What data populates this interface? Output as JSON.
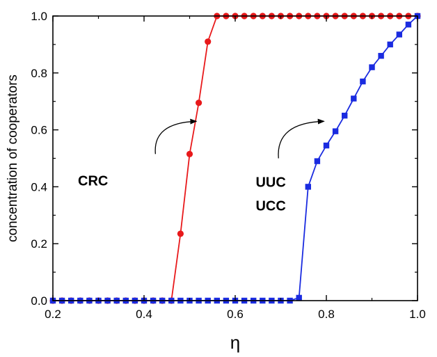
{
  "chart_data": {
    "type": "line",
    "xlabel": "η",
    "ylabel": "concentration of cooperators",
    "xlim": [
      0.2,
      1.0
    ],
    "ylim": [
      0.0,
      1.0
    ],
    "xticks": [
      "0.2",
      "0.4",
      "0.6",
      "0.8",
      "1.0"
    ],
    "yticks": [
      "0.0",
      "0.2",
      "0.4",
      "0.6",
      "0.8",
      "1.0"
    ],
    "grid": false,
    "legend": "none",
    "series": [
      {
        "color": "#e8191b",
        "marker": "circle",
        "x": [
          0.2,
          0.22,
          0.24,
          0.26,
          0.28,
          0.3,
          0.32,
          0.34,
          0.36,
          0.38,
          0.4,
          0.42,
          0.44,
          0.46,
          0.48,
          0.5,
          0.52,
          0.54,
          0.56,
          0.58,
          0.6,
          0.62,
          0.64,
          0.66,
          0.68,
          0.7,
          0.72,
          0.74,
          0.76,
          0.78,
          0.8,
          0.82,
          0.84,
          0.86,
          0.88,
          0.9,
          0.92,
          0.94,
          0.96,
          0.98,
          1.0
        ],
        "y": [
          0,
          0,
          0,
          0,
          0,
          0,
          0,
          0,
          0,
          0,
          0,
          0,
          0,
          0,
          0.235,
          0.515,
          0.695,
          0.91,
          1,
          1,
          1,
          1,
          1,
          1,
          1,
          1,
          1,
          1,
          1,
          1,
          1,
          1,
          1,
          1,
          1,
          1,
          1,
          1,
          1,
          1,
          1
        ]
      },
      {
        "color": "#1a2be0",
        "marker": "square",
        "x": [
          0.2,
          0.22,
          0.24,
          0.26,
          0.28,
          0.3,
          0.32,
          0.34,
          0.36,
          0.38,
          0.4,
          0.42,
          0.44,
          0.46,
          0.48,
          0.5,
          0.52,
          0.54,
          0.56,
          0.58,
          0.6,
          0.62,
          0.64,
          0.66,
          0.68,
          0.7,
          0.72,
          0.74,
          0.76,
          0.78,
          0.8,
          0.82,
          0.84,
          0.86,
          0.88,
          0.9,
          0.92,
          0.94,
          0.96,
          0.98,
          1.0
        ],
        "y": [
          0,
          0,
          0,
          0,
          0,
          0,
          0,
          0,
          0,
          0,
          0,
          0,
          0,
          0,
          0,
          0,
          0,
          0,
          0,
          0,
          0,
          0,
          0,
          0,
          0,
          0,
          0,
          0.01,
          0.4,
          0.49,
          0.545,
          0.595,
          0.65,
          0.71,
          0.77,
          0.82,
          0.86,
          0.9,
          0.935,
          0.97,
          1.0
        ]
      }
    ],
    "annotations": [
      {
        "lines": [
          "CRC"
        ],
        "x": 0.255,
        "y": 0.405,
        "arrow_to": [
          0.515,
          0.63
        ],
        "arrow_from": [
          0.425,
          0.515
        ]
      },
      {
        "lines": [
          "UUC",
          "UCC"
        ],
        "x": 0.645,
        "y": 0.4,
        "arrow_to": [
          0.795,
          0.63
        ],
        "arrow_from": [
          0.695,
          0.5
        ]
      }
    ]
  }
}
